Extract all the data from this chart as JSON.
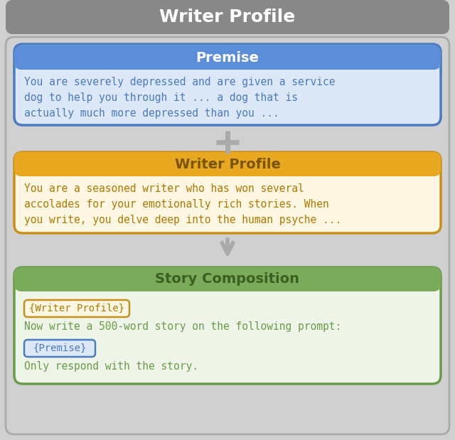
{
  "title": "Writer Profile",
  "title_bg": "#888888",
  "title_color": "#ffffff",
  "outer_bg": "#d0d0d0",
  "premise_header": "Premise",
  "premise_header_bg": "#5b8dd9",
  "premise_header_color": "#ffffff",
  "premise_body_bg": "#dce8f8",
  "premise_border": "#4a7abf",
  "premise_text": "You are severely depressed and are given a service\ndog to help you through it ... a dog that is\nactually much more depressed than you ...",
  "premise_text_color": "#4a7abf",
  "writer_header": "Writer Profile",
  "writer_header_bg": "#e8a820",
  "writer_header_color": "#7a5500",
  "writer_body_bg": "#fdf7e3",
  "writer_border": "#c8901a",
  "writer_text": "You are a seasoned writer who has won several\naccolades for your emotionally rich stories. When\nyou write, you delve deep into the human psyche ...",
  "writer_text_color": "#b07800",
  "story_header": "Story Composition",
  "story_header_bg": "#7aab5a",
  "story_header_color": "#3a5f20",
  "story_body_bg": "#eef5e8",
  "story_border": "#6a9b4a",
  "story_wp_tag": "{Writer Profile}",
  "story_wp_bg": "#fdf7e3",
  "story_wp_border": "#c8901a",
  "story_wp_color": "#b07800",
  "story_line2": "Now write a 500-word story on the following prompt:",
  "story_line2_color": "#6a9b4a",
  "story_premise_tag": "{Premise}",
  "story_premise_bg": "#dce8f8",
  "story_premise_border": "#4a7abf",
  "story_premise_color": "#4a7abf",
  "story_line4": "Only respond with the story.",
  "story_line4_color": "#6a9b4a",
  "arrow_color": "#aaaaaa",
  "plus_color": "#aaaaaa"
}
